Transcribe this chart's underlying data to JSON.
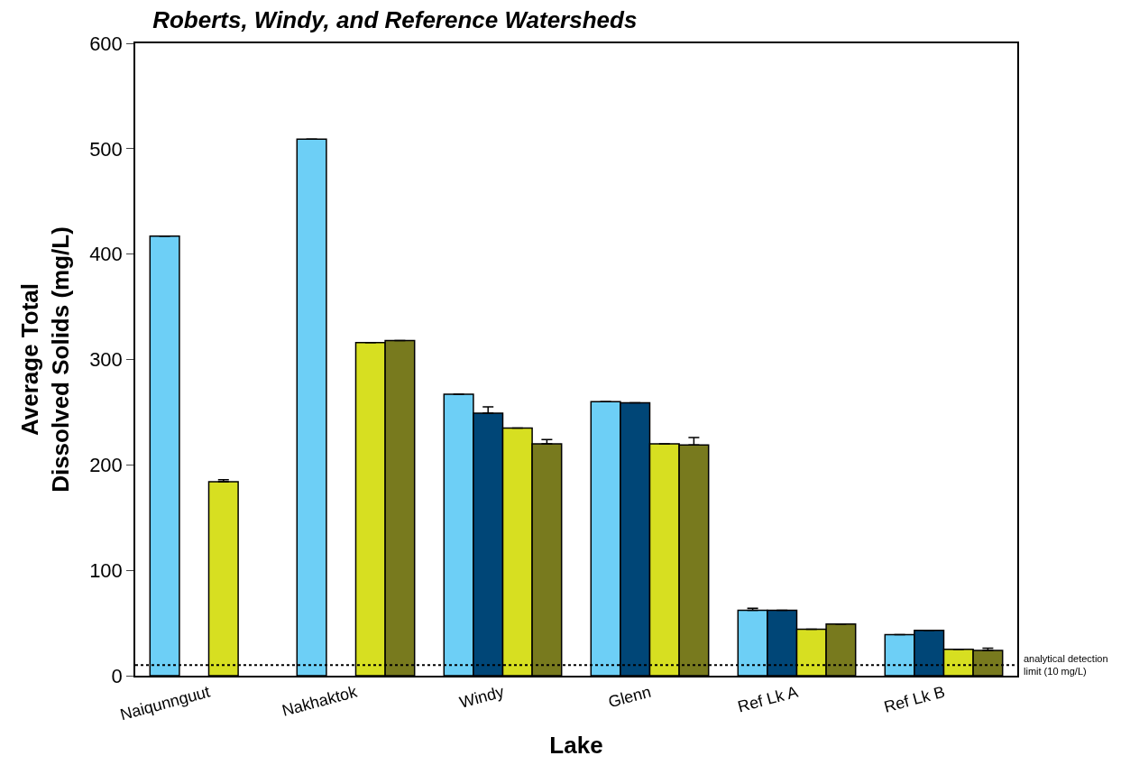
{
  "chart_data": {
    "type": "bar",
    "title": "Roberts, Windy, and Reference Watersheds",
    "xlabel": "Lake",
    "ylabel": "Average Total\nDissolved Solids (mg/L)",
    "categories": [
      "Naiqunnguut",
      "Nakhaktok",
      "Windy",
      "Glenn",
      "Ref Lk A",
      "Ref Lk B"
    ],
    "series": [
      {
        "color": "#6dcff6",
        "values": [
          417,
          509,
          267,
          260,
          62,
          39
        ],
        "errors": [
          null,
          null,
          null,
          null,
          2,
          null
        ]
      },
      {
        "color": "#004677",
        "values": [
          null,
          null,
          249,
          259,
          62,
          43
        ],
        "errors": [
          null,
          null,
          6,
          null,
          null,
          null
        ]
      },
      {
        "color": "#d7df21",
        "values": [
          184,
          316,
          235,
          220,
          44,
          25
        ],
        "errors": [
          2,
          null,
          null,
          null,
          null,
          null
        ]
      },
      {
        "color": "#787a1e",
        "values": [
          null,
          318,
          220,
          219,
          49,
          24
        ],
        "errors": [
          null,
          null,
          4,
          7,
          null,
          2
        ]
      }
    ],
    "ylim": [
      0,
      600
    ],
    "yticks": [
      0,
      100,
      200,
      300,
      400,
      500,
      600
    ],
    "ref_lines": [
      {
        "axis": "y",
        "value": 10,
        "label": "analytical detection\nlimit (10 mg/L)",
        "line_style": "dotted",
        "color": "#000000"
      }
    ]
  }
}
